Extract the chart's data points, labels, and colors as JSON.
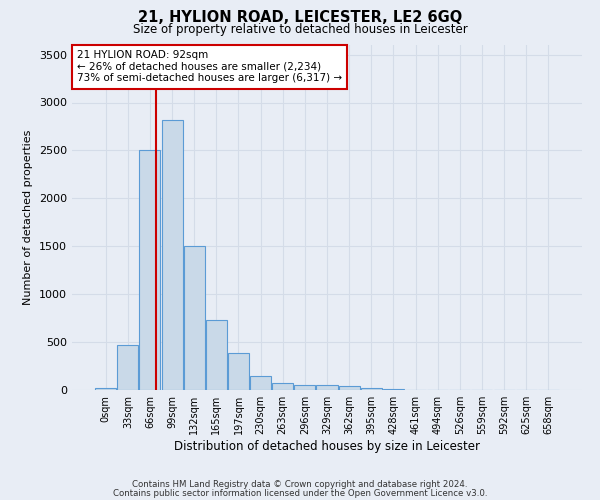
{
  "title": "21, HYLION ROAD, LEICESTER, LE2 6GQ",
  "subtitle": "Size of property relative to detached houses in Leicester",
  "xlabel": "Distribution of detached houses by size in Leicester",
  "ylabel": "Number of detached properties",
  "footnote1": "Contains HM Land Registry data © Crown copyright and database right 2024.",
  "footnote2": "Contains public sector information licensed under the Open Government Licence v3.0.",
  "bar_color": "#c9d9e8",
  "bar_edge_color": "#5b9bd5",
  "grid_color": "#d4dce8",
  "background_color": "#e8edf5",
  "plot_bg_color": "#e8edf5",
  "annotation_line_color": "#cc0000",
  "annotation_box_edge": "#cc0000",
  "annotation_text_line1": "21 HYLION ROAD: 92sqm",
  "annotation_text_line2": "← 26% of detached houses are smaller (2,234)",
  "annotation_text_line3": "73% of semi-detached houses are larger (6,317) →",
  "property_sqm": 92,
  "bin_labels": [
    "0sqm",
    "33sqm",
    "66sqm",
    "99sqm",
    "132sqm",
    "165sqm",
    "197sqm",
    "230sqm",
    "263sqm",
    "296sqm",
    "329sqm",
    "362sqm",
    "395sqm",
    "428sqm",
    "461sqm",
    "494sqm",
    "526sqm",
    "559sqm",
    "592sqm",
    "625sqm",
    "658sqm"
  ],
  "bar_heights": [
    25,
    470,
    2500,
    2820,
    1500,
    730,
    390,
    145,
    75,
    55,
    50,
    40,
    25,
    15,
    0,
    0,
    0,
    0,
    0,
    0,
    0
  ],
  "ylim": [
    0,
    3600
  ],
  "yticks": [
    0,
    500,
    1000,
    1500,
    2000,
    2500,
    3000,
    3500
  ],
  "bin_width": 33,
  "figsize": [
    6.0,
    5.0
  ],
  "dpi": 100
}
